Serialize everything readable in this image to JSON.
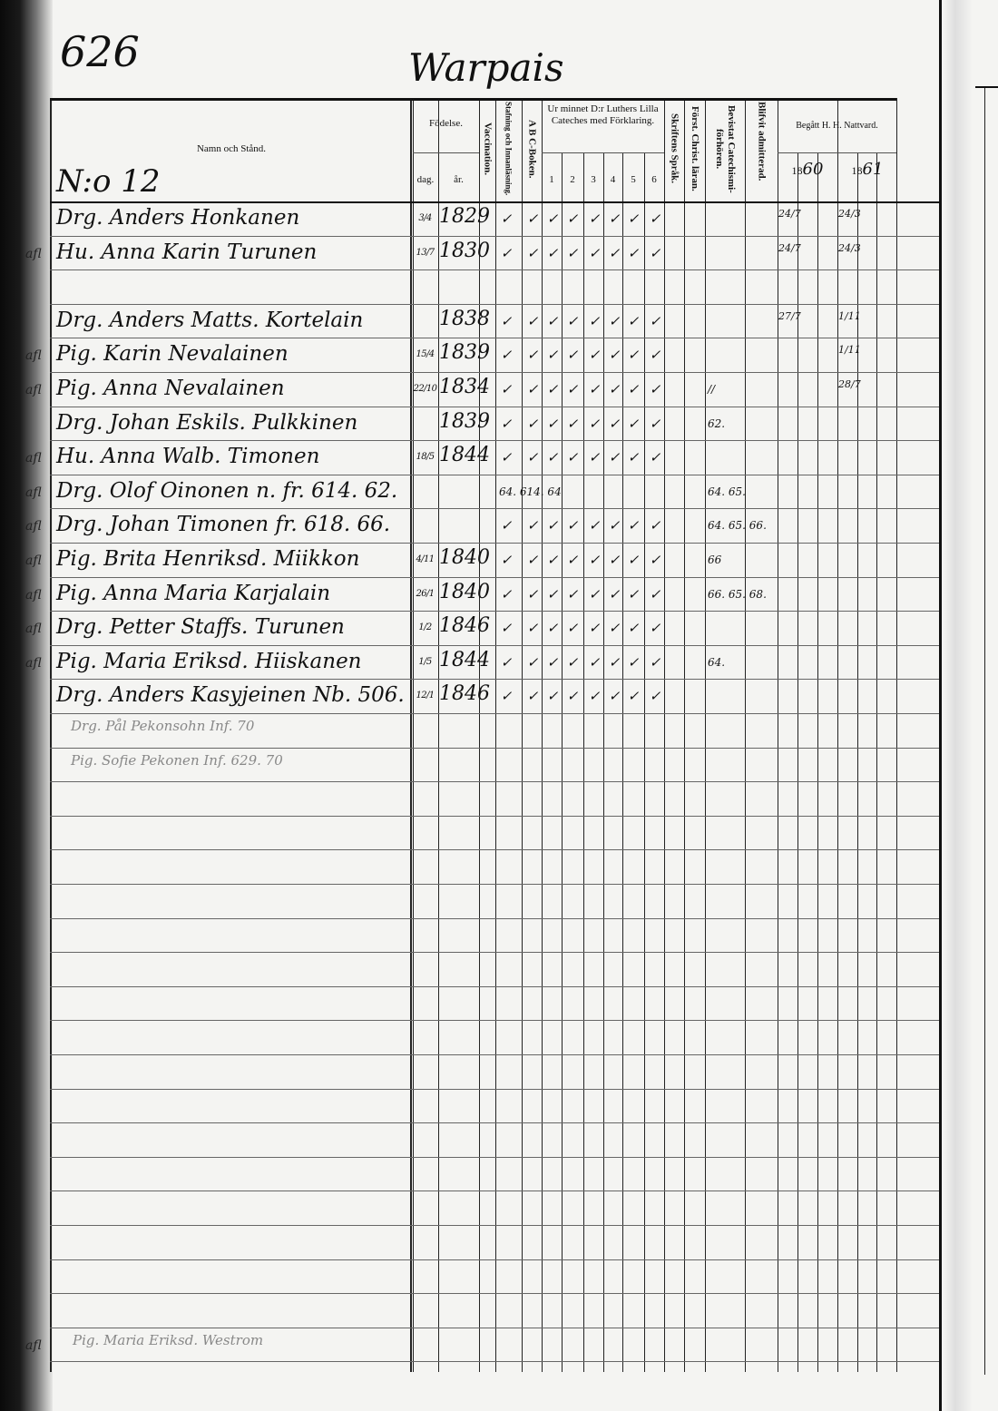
{
  "page_number": "626",
  "parish": "Warpais",
  "household_number": "N:o 12",
  "headers": {
    "name": "Namn och Stånd.",
    "birth": "Födelse.",
    "day": "dag.",
    "year": "år.",
    "vaccination": "Vaccination.",
    "spelling": "Stafning och Innanläsning.",
    "abc": "A B C-Boken.",
    "catechism": "Ur minnet D:r Luthers Lilla Cateches med Förklaring.",
    "catechism_cols": [
      "1",
      "2",
      "3",
      "4",
      "5",
      "6"
    ],
    "scripture": "Skriftens Språk.",
    "christ": "Först. Christ. läran.",
    "examinations": "Bevistat Catechismi-förhören.",
    "admitted": "Blifvit admitterad.",
    "communion": "Begått H. H. Nattvard.",
    "year1_prefix": "18",
    "year1_suffix": "60",
    "year2_prefix": "18",
    "year2_suffix": "61"
  },
  "check_glyph": "✓",
  "rows": [
    {
      "margin": "",
      "name": "Drg. Anders Honkanen",
      "day": "3/4",
      "year": "1829",
      "checks": true,
      "exam": "",
      "c1860": "24/7",
      "c1861": "24/3"
    },
    {
      "margin": "afl",
      "name": "Hu. Anna Karin Turunen",
      "day": "13/7",
      "year": "1830",
      "checks": true,
      "exam": "",
      "c1860": "24/7",
      "c1861": "24/3"
    },
    {},
    {
      "margin": "",
      "name": "Drg. Anders Matts. Kortelain",
      "day": "",
      "year": "1838",
      "checks": true,
      "exam": "",
      "c1860": "27/7",
      "c1861": "1/11"
    },
    {
      "margin": "afl",
      "name": "Pig. Karin Nevalainen",
      "day": "15/4",
      "year": "1839",
      "checks": true,
      "exam": "",
      "c1860": "",
      "c1861": "1/11"
    },
    {
      "margin": "afl",
      "name": "Pig. Anna Nevalainen",
      "day": "22/10",
      "year": "1834",
      "checks": true,
      "exam": "//",
      "c1860": "",
      "c1861": "28/7"
    },
    {
      "margin": "",
      "name": "Drg. Johan Eskils. Pulkkinen",
      "day": "",
      "year": "1839",
      "checks": true,
      "exam": "62.",
      "c1860": "",
      "c1861": ""
    },
    {
      "margin": "afl",
      "name": "Hu. Anna Walb. Timonen",
      "day": "18/5",
      "year": "1844",
      "checks": true,
      "exam": "",
      "c1860": "",
      "c1861": ""
    },
    {
      "margin": "afl",
      "name": "Drg. Olof Oinonen n. fr. 614. 62.",
      "day": "",
      "year": "",
      "checks": false,
      "check_note": "64. 614. 64",
      "exam": "64. 65.",
      "c1860": "",
      "c1861": ""
    },
    {
      "margin": "afl",
      "name": "Drg. Johan Timonen fr. 618. 66.",
      "day": "",
      "year": "",
      "checks": true,
      "exam": "64. 65. 66.",
      "c1860": "",
      "c1861": ""
    },
    {
      "margin": "afl",
      "name": "Pig. Brita Henriksd. Miikkon",
      "day": "4/11",
      "year": "1840",
      "checks": true,
      "exam": "66",
      "c1860": "",
      "c1861": ""
    },
    {
      "margin": "afl",
      "name": "Pig. Anna Maria Karjalain",
      "day": "26/1",
      "year": "1840",
      "checks": true,
      "exam": "66. 65. 68.",
      "c1860": "",
      "c1861": ""
    },
    {
      "margin": "afl",
      "name": "Drg. Petter Staffs. Turunen",
      "day": "1/2",
      "year": "1846",
      "checks": true,
      "exam": "",
      "c1860": "",
      "c1861": ""
    },
    {
      "margin": "afl",
      "name": "Pig. Maria Eriksd. Hiiskanen",
      "day": "1/5",
      "year": "1844",
      "checks": true,
      "exam": "64.",
      "c1860": "",
      "c1861": ""
    },
    {
      "margin": "",
      "name": "Drg. Anders Kasyjeinen Nb. 506.",
      "day": "12/1",
      "year": "1846",
      "checks": true,
      "exam": "",
      "c1860": "",
      "c1861": ""
    },
    {
      "margin": "",
      "name": "Drg. Pål Pekonsohn Inf. 70",
      "faint": true
    },
    {
      "margin": "",
      "name": "Pig. Sofie Pekonen Inf. 629. 70",
      "faint": true
    }
  ],
  "bottom_entry": {
    "margin": "afl",
    "name": "Pig. Maria Eriksd. Westrom"
  }
}
